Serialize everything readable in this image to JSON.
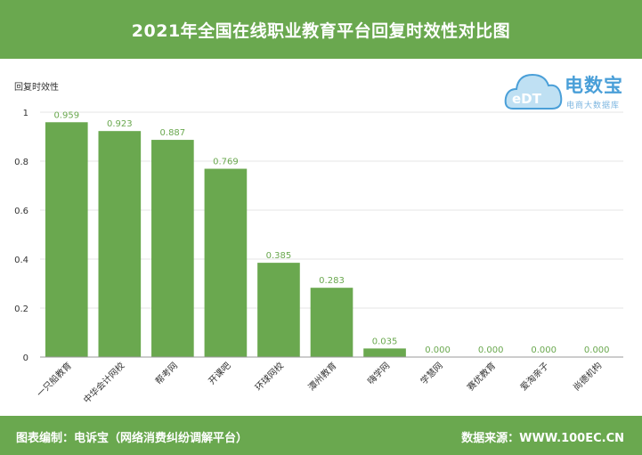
{
  "header": {
    "title": "2021年全国在线职业教育平台回复时效性对比图"
  },
  "logo": {
    "brand": "电数宝",
    "sub": "电商大数据库",
    "mark": "eDT"
  },
  "footer": {
    "left": "图表编制：电诉宝（网络消费纠纷调解平台）",
    "right": "数据来源：WWW.100EC.CN"
  },
  "colors": {
    "bar": "#6aa84f",
    "header_bg": "#6aa84f",
    "label": "#6aa84f"
  },
  "chart_data": {
    "type": "bar",
    "title": "",
    "ylabel": "回复时效性",
    "xlabel": "",
    "ylim": [
      0,
      1
    ],
    "yticks": [
      "0",
      "0.2",
      "0.4",
      "0.6",
      "0.8",
      "1"
    ],
    "categories": [
      "一只船教育",
      "中华会计网校",
      "帮考网",
      "开课吧",
      "环球网校",
      "潭州教育",
      "嗨学网",
      "学慧网",
      "赛优教育",
      "爱淘亲子",
      "尚德机构"
    ],
    "values": [
      0.959,
      0.923,
      0.887,
      0.769,
      0.385,
      0.283,
      0.035,
      0.0,
      0.0,
      0.0,
      0.0
    ],
    "value_labels": [
      "0.959",
      "0.923",
      "0.887",
      "0.769",
      "0.385",
      "0.283",
      "0.035",
      "0.000",
      "0.000",
      "0.000",
      "0.000"
    ],
    "grid": true
  }
}
